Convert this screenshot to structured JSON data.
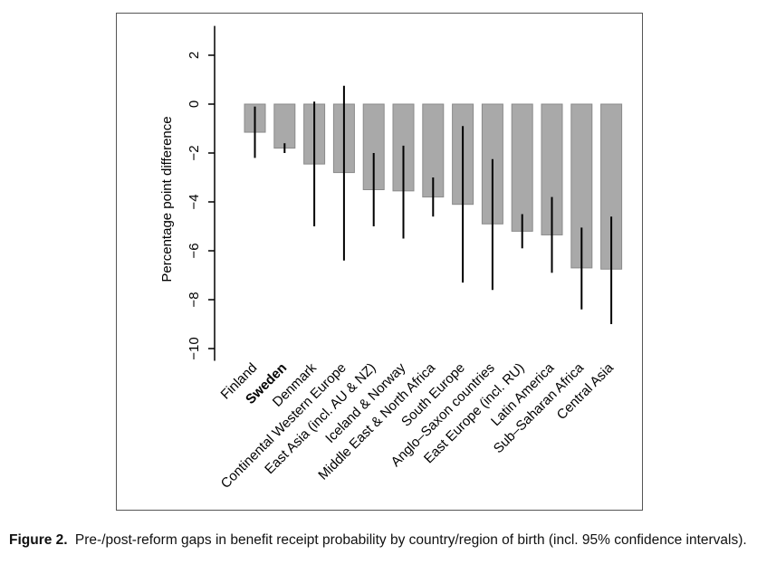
{
  "chart_data": {
    "type": "bar",
    "ylabel": "Percentage point difference",
    "xlabel": "",
    "ylim": [
      -10.5,
      3.2
    ],
    "yticks": [
      2,
      0,
      -2,
      -4,
      -6,
      -8,
      -10
    ],
    "ytick_labels": [
      "2",
      "0",
      "−2",
      "−4",
      "−6",
      "−8",
      "−10"
    ],
    "categories": [
      "Finland",
      "Sweden",
      "Denmark",
      "Continental Western Europe",
      "East Asia (incl. AU & NZ)",
      "Iceland & Norway",
      "Middle East & North Africa",
      "South Europe",
      "Anglo–Saxon countries",
      "East Europe (incl. RU)",
      "Latin America",
      "Sub–Saharan Africa",
      "Central Asia"
    ],
    "bold_categories": [
      "Sweden"
    ],
    "values": [
      -1.15,
      -1.8,
      -2.45,
      -2.8,
      -3.5,
      -3.55,
      -3.8,
      -4.1,
      -4.9,
      -5.2,
      -5.35,
      -6.7,
      -6.75
    ],
    "ci_low": [
      -2.2,
      -2.0,
      -5.0,
      -6.4,
      -5.0,
      -5.5,
      -4.6,
      -7.3,
      -7.6,
      -5.9,
      -6.9,
      -8.4,
      -9.0
    ],
    "ci_high": [
      -0.1,
      -1.6,
      0.1,
      0.75,
      -2.0,
      -1.7,
      -3.0,
      -0.9,
      -2.25,
      -4.5,
      -3.8,
      -5.05,
      -4.6
    ],
    "bar_color": "#a9a9a9",
    "bar_edge_color": "#8a8a8a",
    "ci_color": "#000000",
    "grid": false,
    "legend": "none"
  },
  "caption": {
    "label": "Figure 2.",
    "text": "Pre-/post-reform gaps in benefit receipt probability by country/region of birth (incl. 95% confidence intervals)."
  }
}
